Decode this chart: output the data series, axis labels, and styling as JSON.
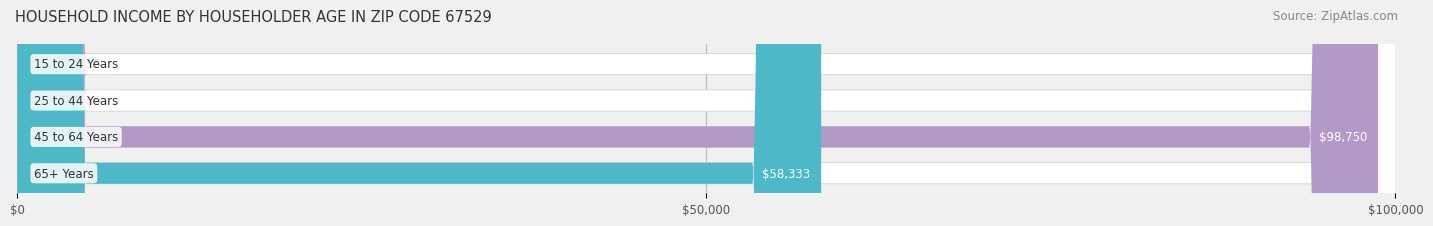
{
  "title": "HOUSEHOLD INCOME BY HOUSEHOLDER AGE IN ZIP CODE 67529",
  "source": "Source: ZipAtlas.com",
  "categories": [
    "15 to 24 Years",
    "25 to 44 Years",
    "45 to 64 Years",
    "65+ Years"
  ],
  "values": [
    0,
    0,
    98750,
    58333
  ],
  "bar_colors": [
    "#f08080",
    "#87CEEB",
    "#b399c8",
    "#4db8c8"
  ],
  "xlim": [
    0,
    100000
  ],
  "xticks": [
    0,
    50000,
    100000
  ],
  "xticklabels": [
    "$0",
    "$50,000",
    "$100,000"
  ],
  "background_color": "#f0f0f0",
  "bar_background_color": "#ffffff",
  "bar_height": 0.58,
  "title_fontsize": 10.5,
  "source_fontsize": 8.5,
  "label_fontsize": 8.5,
  "tick_fontsize": 8.5,
  "zero_bar_width": 3500
}
